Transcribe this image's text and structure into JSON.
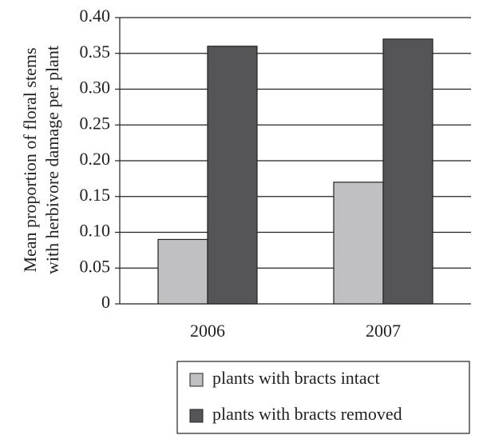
{
  "chart_data": {
    "type": "bar",
    "ylabel": [
      "Mean proportion of floral stems",
      "with herbivore damage per plant"
    ],
    "categories": [
      "2006",
      "2007"
    ],
    "series": [
      {
        "name": "plants with bracts intact",
        "color": "#c0c0c2",
        "values": [
          0.09,
          0.17
        ]
      },
      {
        "name": "plants with bracts removed",
        "color": "#555557",
        "values": [
          0.36,
          0.37
        ]
      }
    ],
    "ylim": [
      0,
      0.4
    ],
    "yticks": [
      0,
      0.05,
      {
        "value": 0.1,
        "label": "0.10"
      },
      0.15,
      {
        "value": 0.2,
        "label": "0.20"
      },
      0.25,
      {
        "value": 0.3,
        "label": "0.30"
      },
      0.35,
      {
        "value": 0.4,
        "label": "0.40"
      }
    ],
    "grid": true,
    "legend": "bottom"
  }
}
